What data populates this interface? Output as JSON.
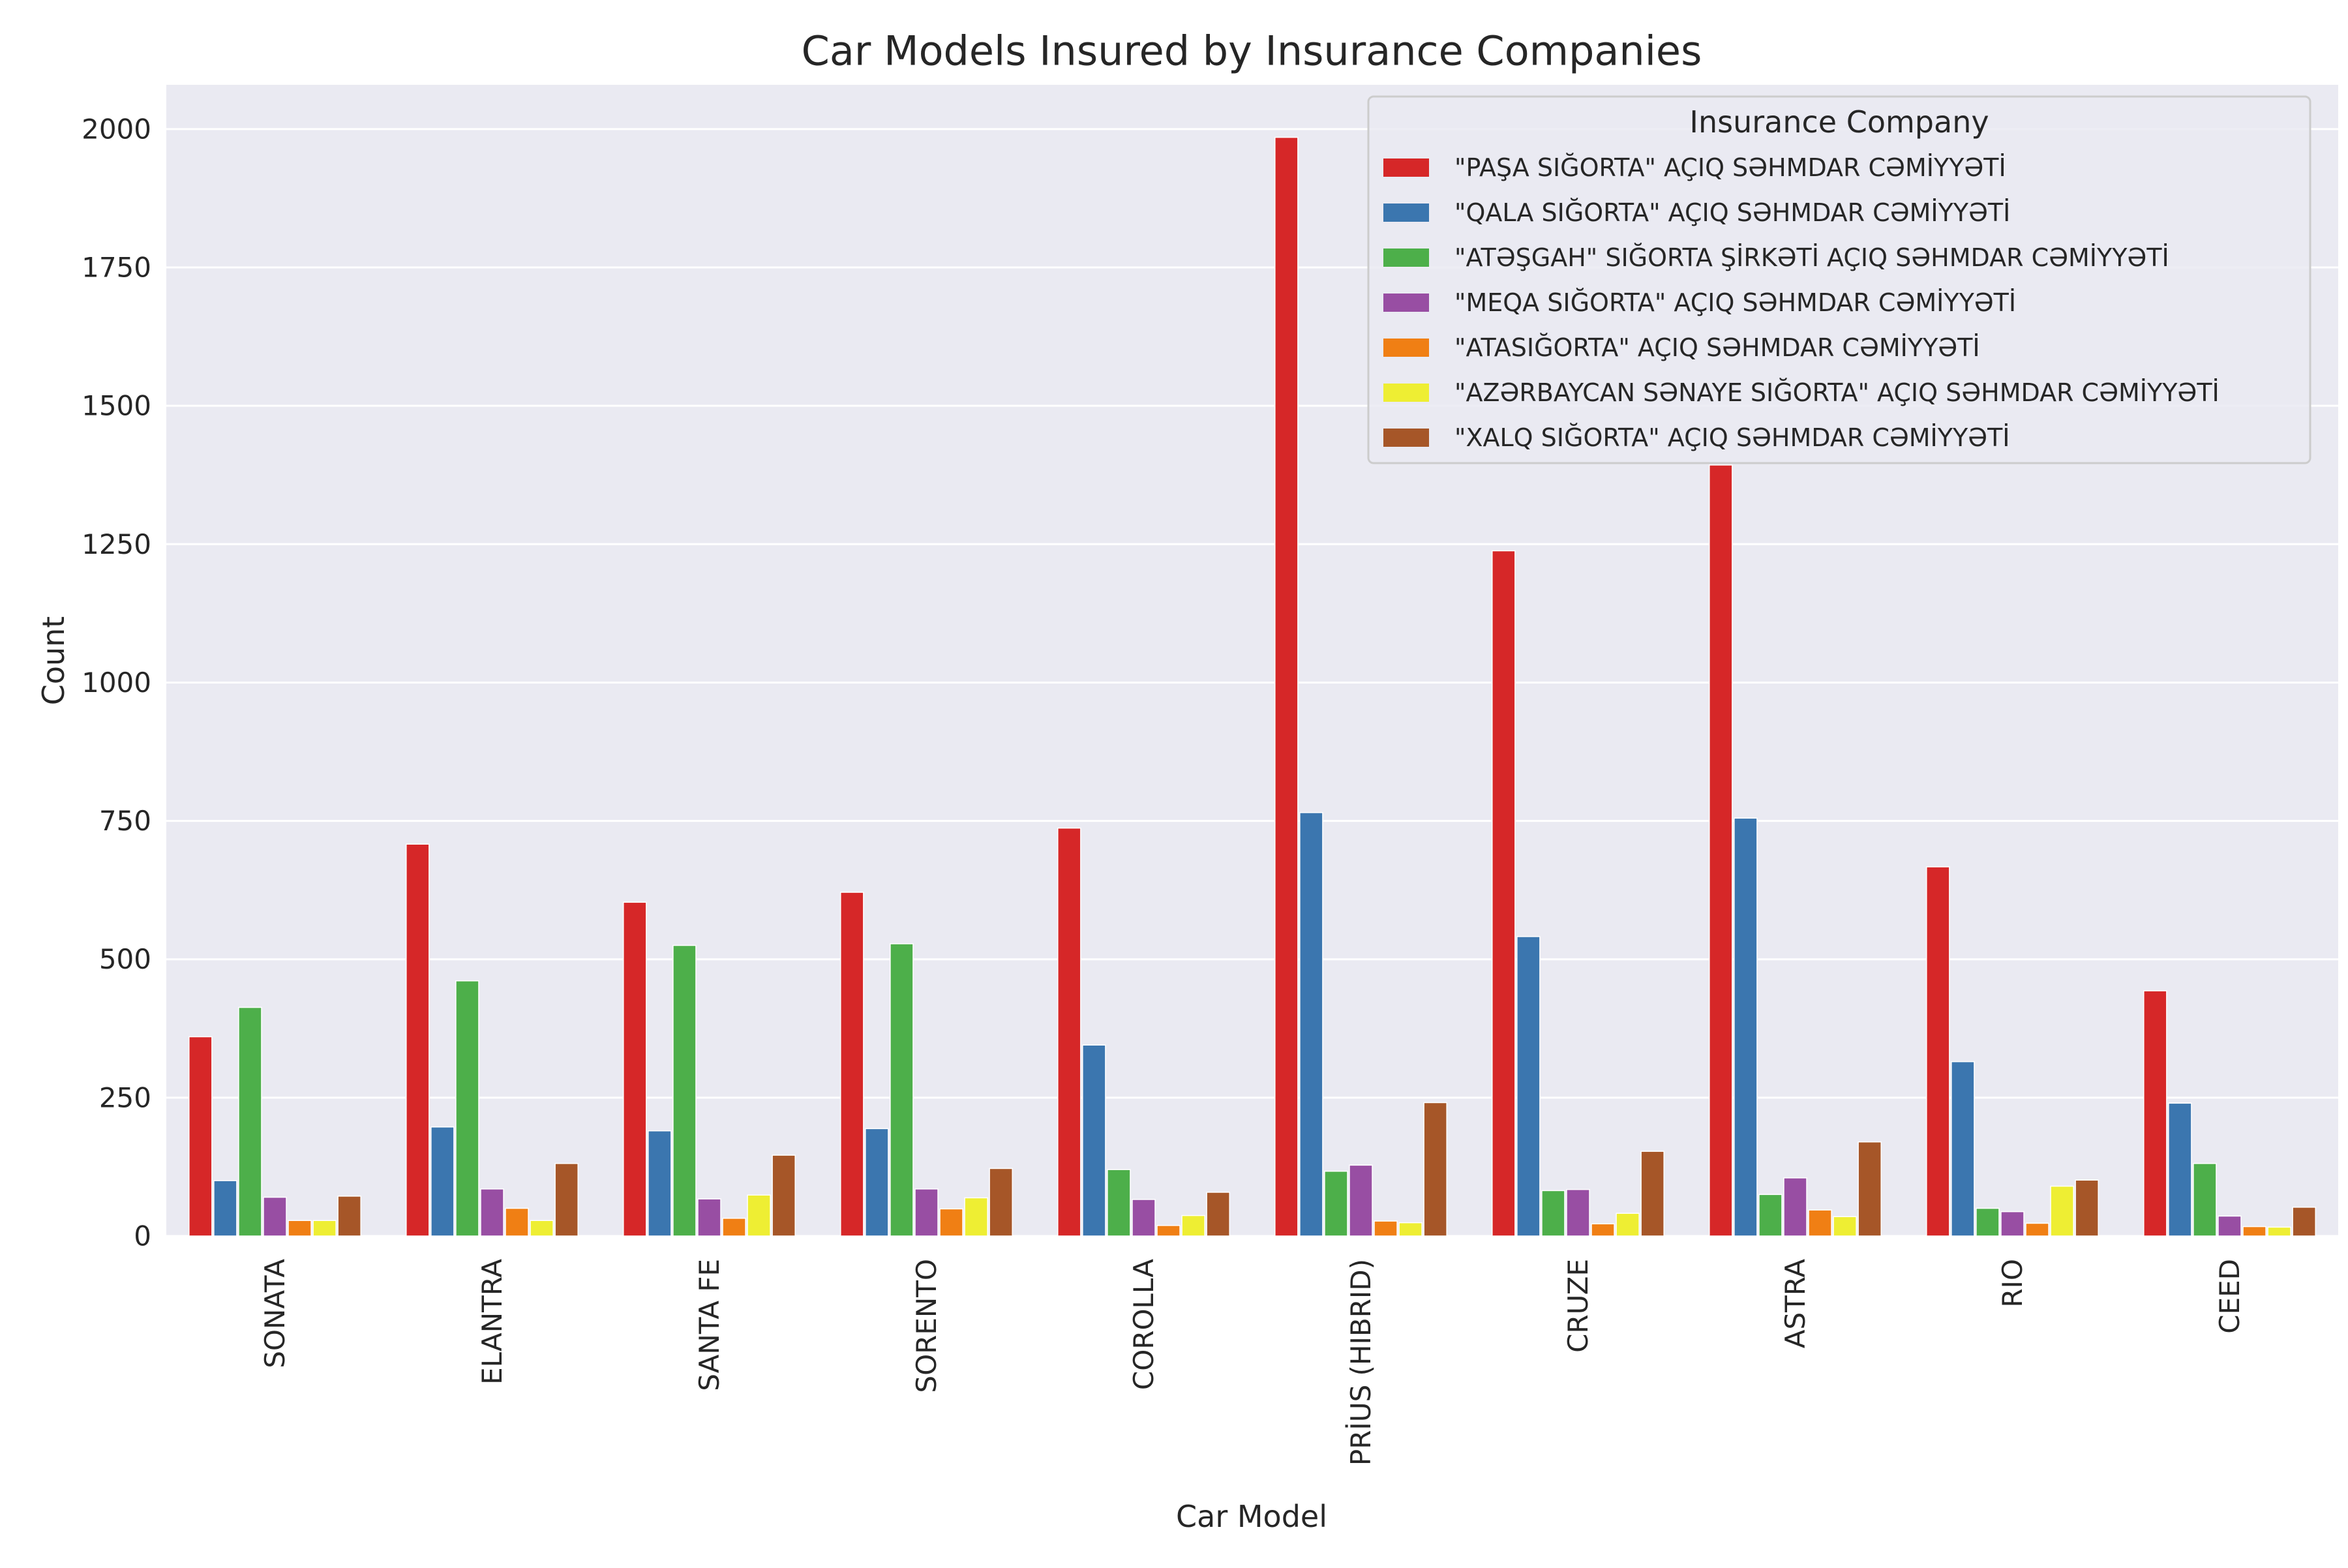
{
  "chart_data": {
    "type": "bar",
    "title": "Car Models Insured by Insurance Companies",
    "xlabel": "Car Model",
    "ylabel": "Count",
    "ylim": [
      0,
      2080
    ],
    "yticks": [
      0,
      250,
      500,
      750,
      1000,
      1250,
      1500,
      1750,
      2000
    ],
    "grid": true,
    "legend": {
      "title": "Insurance Company",
      "placement": "top-right"
    },
    "categories": [
      "SONATA",
      "ELANTRA",
      "SANTA FE",
      "SORENTO",
      "COROLLA",
      "PRİUS (HIBRID)",
      "CRUZE",
      "ASTRA",
      "RIO",
      "CEED"
    ],
    "series": [
      {
        "name": "\"PAŞA SIĞORTA\" AÇIQ SƏHMDAR CƏMİYYƏTİ",
        "color": "#d62728",
        "values": [
          360,
          708,
          603,
          621,
          737,
          1985,
          1238,
          1393,
          667,
          443
        ]
      },
      {
        "name": "\"QALA SIĞORTA\" AÇIQ SƏHMDAR CƏMİYYƏTİ",
        "color": "#3b76af",
        "values": [
          100,
          197,
          190,
          194,
          345,
          765,
          541,
          755,
          315,
          240
        ]
      },
      {
        "name": "\"ATƏŞGAH\" SIĞORTA ŞİRKƏTİ AÇIQ SƏHMDAR CƏMİYYƏTİ",
        "color": "#4daf4a",
        "values": [
          413,
          461,
          525,
          528,
          120,
          117,
          82,
          75,
          50,
          131
        ]
      },
      {
        "name": "\"MEQA SIĞORTA\" AÇIQ SƏHMDAR CƏMİYYƏTİ",
        "color": "#984ea3",
        "values": [
          70,
          85,
          67,
          85,
          66,
          128,
          84,
          105,
          44,
          36
        ]
      },
      {
        "name": "\"ATASIĞORTA\" AÇIQ SƏHMDAR CƏMİYYƏTİ",
        "color": "#f07f14",
        "values": [
          28,
          50,
          32,
          49,
          19,
          27,
          22,
          47,
          23,
          17
        ]
      },
      {
        "name": "\"AZƏRBAYCAN SƏNAYE SIĞORTA\" AÇIQ SƏHMDAR CƏMİYYƏTİ",
        "color": "#eeee33",
        "values": [
          28,
          28,
          74,
          69,
          37,
          24,
          41,
          35,
          90,
          16
        ]
      },
      {
        "name": "\"XALQ SIĞORTA\" AÇIQ SƏHMDAR CƏMİYYƏTİ",
        "color": "#a65628",
        "values": [
          72,
          131,
          146,
          122,
          79,
          241,
          153,
          170,
          101,
          52
        ]
      }
    ]
  }
}
